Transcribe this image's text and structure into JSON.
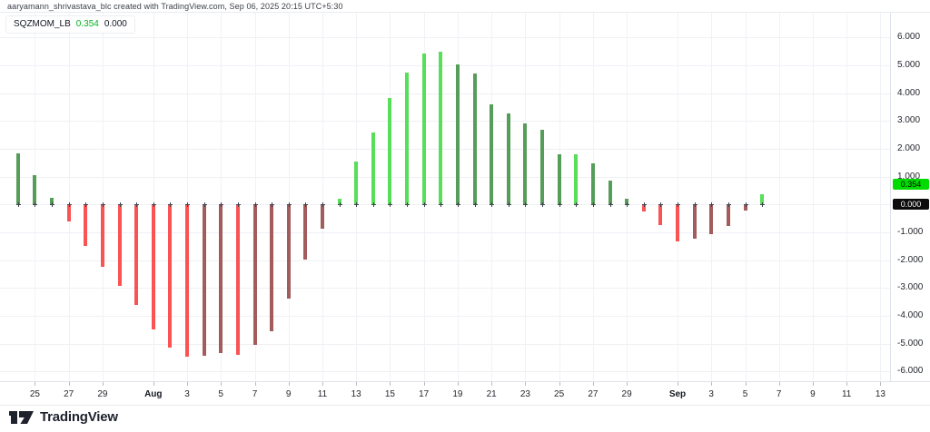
{
  "attribution": "aaryamann_shrivastava_blc created with TradingView.com, Sep 06, 2025 20:15 UTC+5:30",
  "legend": {
    "indicator": "SQZMOM_LB",
    "value": "0.354",
    "value_color": "#00b31e",
    "zero_value": "0.000"
  },
  "price_scale": {
    "labels": [
      {
        "text": "6.000",
        "value": 6
      },
      {
        "text": "5.000",
        "value": 5
      },
      {
        "text": "4.000",
        "value": 4
      },
      {
        "text": "3.000",
        "value": 3
      },
      {
        "text": "2.000",
        "value": 2
      },
      {
        "text": "1.000",
        "value": 1
      },
      {
        "text": "-1.000",
        "value": -1
      },
      {
        "text": "-2.000",
        "value": -2
      },
      {
        "text": "-3.000",
        "value": -3
      },
      {
        "text": "-4.000",
        "value": -4
      },
      {
        "text": "-5.000",
        "value": -5
      },
      {
        "text": "-6.000",
        "value": -6
      }
    ],
    "badges": [
      {
        "text": "0.354",
        "value": 0.354,
        "bg": "#00dc00",
        "fg": "#000000"
      },
      {
        "text": "0.000",
        "value": 0,
        "bg": "#0c0c0c",
        "fg": "#ffffff"
      }
    ]
  },
  "time_scale": {
    "ticks": [
      {
        "label": "25",
        "slot": 1,
        "month": false
      },
      {
        "label": "27",
        "slot": 3,
        "month": false
      },
      {
        "label": "29",
        "slot": 5,
        "month": false
      },
      {
        "label": "Aug",
        "slot": 8,
        "month": true
      },
      {
        "label": "3",
        "slot": 10,
        "month": false
      },
      {
        "label": "5",
        "slot": 12,
        "month": false
      },
      {
        "label": "7",
        "slot": 14,
        "month": false
      },
      {
        "label": "9",
        "slot": 16,
        "month": false
      },
      {
        "label": "11",
        "slot": 18,
        "month": false
      },
      {
        "label": "13",
        "slot": 20,
        "month": false
      },
      {
        "label": "15",
        "slot": 22,
        "month": false
      },
      {
        "label": "17",
        "slot": 24,
        "month": false
      },
      {
        "label": "19",
        "slot": 26,
        "month": false
      },
      {
        "label": "21",
        "slot": 28,
        "month": false
      },
      {
        "label": "23",
        "slot": 30,
        "month": false
      },
      {
        "label": "25",
        "slot": 32,
        "month": false
      },
      {
        "label": "27",
        "slot": 34,
        "month": false
      },
      {
        "label": "29",
        "slot": 36,
        "month": false
      },
      {
        "label": "Sep",
        "slot": 39,
        "month": true
      },
      {
        "label": "3",
        "slot": 41,
        "month": false
      },
      {
        "label": "5",
        "slot": 43,
        "month": false
      },
      {
        "label": "7",
        "slot": 45,
        "month": false
      },
      {
        "label": "9",
        "slot": 47,
        "month": false
      },
      {
        "label": "11",
        "slot": 49,
        "month": false
      },
      {
        "label": "13",
        "slot": 51,
        "month": false
      }
    ]
  },
  "logo": {
    "text": "TradingView"
  },
  "chart_data": {
    "type": "bar",
    "title": "SQZMOM_LB (Squeeze Momentum) daily histogram",
    "xlabel": "",
    "ylabel": "",
    "ylim": [
      -6.5,
      6.5
    ],
    "grid": true,
    "legend_position": "top-left",
    "zero_line_markers": "cross",
    "categories": [
      "Jul 24",
      "Jul 25",
      "Jul 26",
      "Jul 27",
      "Jul 28",
      "Jul 29",
      "Jul 30",
      "Jul 31",
      "Aug 1",
      "Aug 2",
      "Aug 3",
      "Aug 4",
      "Aug 5",
      "Aug 6",
      "Aug 7",
      "Aug 8",
      "Aug 9",
      "Aug 10",
      "Aug 11",
      "Aug 12",
      "Aug 13",
      "Aug 14",
      "Aug 15",
      "Aug 16",
      "Aug 17",
      "Aug 18",
      "Aug 19",
      "Aug 20",
      "Aug 21",
      "Aug 22",
      "Aug 23",
      "Aug 24",
      "Aug 25",
      "Aug 26",
      "Aug 27",
      "Aug 28",
      "Aug 29",
      "Aug 30",
      "Aug 31",
      "Sep 1",
      "Sep 2",
      "Sep 3",
      "Sep 4",
      "Sep 5",
      "Sep 6"
    ],
    "values": [
      1.84,
      1.04,
      0.25,
      -0.62,
      -1.48,
      -2.24,
      -2.92,
      -3.63,
      -4.5,
      -5.16,
      -5.48,
      -5.45,
      -5.35,
      -5.42,
      -5.05,
      -4.56,
      -3.39,
      -1.99,
      -0.89,
      0.22,
      1.55,
      2.57,
      3.83,
      4.72,
      5.43,
      5.5,
      5.02,
      4.7,
      3.6,
      3.28,
      2.9,
      2.68,
      1.79,
      1.81,
      1.49,
      0.84,
      0.22,
      -0.25,
      -0.76,
      -1.33,
      -1.23,
      -1.07,
      -0.78,
      -0.22,
      0.354
    ],
    "states": [
      "green",
      "green",
      "green",
      "red",
      "red",
      "red",
      "red",
      "red",
      "red",
      "red",
      "red",
      "maroon",
      "maroon",
      "red",
      "maroon",
      "maroon",
      "maroon",
      "maroon",
      "maroon",
      "lime",
      "lime",
      "lime",
      "lime",
      "lime",
      "lime",
      "lime",
      "green",
      "green",
      "green",
      "green",
      "green",
      "green",
      "green",
      "lime",
      "green",
      "green",
      "green",
      "red",
      "red",
      "red",
      "maroon",
      "maroon",
      "maroon",
      "maroon",
      "lime"
    ],
    "palette": {
      "lime": "#58de58",
      "green": "#569d5a",
      "red": "#f95353",
      "maroon": "#a35c5c",
      "zero_cross": "#3f434c"
    }
  }
}
